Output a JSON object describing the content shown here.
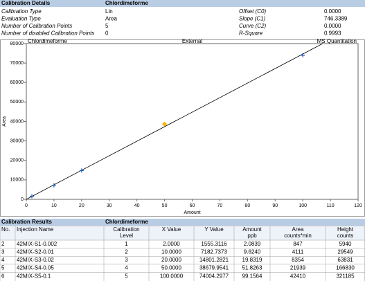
{
  "details": {
    "title": "Calibration Details",
    "compound": "Chlordimeforme",
    "left": [
      {
        "label": "Calibration Type",
        "value": "Lin"
      },
      {
        "label": "Evaluation Type",
        "value": "Area"
      },
      {
        "label": "Number of Calibration Points",
        "value": "5"
      },
      {
        "label": "Number of disabled Calibration Points",
        "value": "0"
      }
    ],
    "right": [
      {
        "label": "Offset (C0)",
        "value": "0.0000"
      },
      {
        "label": "Slope (C1)",
        "value": "746.3389"
      },
      {
        "label": "Curve (C2)",
        "value": "0.0000"
      },
      {
        "label": "R-Square",
        "value": "0.9993"
      }
    ]
  },
  "chart_data": {
    "type": "scatter",
    "title_left": "Chlordimeforme",
    "title": "External",
    "title_right": "MS Quantitation",
    "x_label": "Amount",
    "y_label": "Area",
    "xlim": [
      0,
      120
    ],
    "ylim": [
      0,
      80000
    ],
    "xticks": [
      0,
      10,
      20,
      30,
      40,
      50,
      60,
      70,
      80,
      90,
      100,
      110,
      120
    ],
    "yticks": [
      0,
      10000,
      20000,
      30000,
      40000,
      50000,
      60000,
      70000,
      80000
    ],
    "points": {
      "x": [
        2,
        10,
        20,
        100
      ],
      "y": [
        1555.3116,
        7182.7373,
        14801.2821,
        74004.2977
      ],
      "color": "#1f5fbf"
    },
    "highlight": {
      "x": [
        50
      ],
      "y": [
        38679.9541
      ],
      "color": "#f5b400"
    },
    "line_color": "#000000"
  },
  "results": {
    "title": "Calibration Results",
    "compound": "Chlordimeforme",
    "columns": [
      [
        "No."
      ],
      [
        "Injection Name"
      ],
      [
        "Calibration",
        "Level"
      ],
      [
        "X Value"
      ],
      [
        "Y Value"
      ],
      [
        "Amount",
        "ppb"
      ],
      [
        "Area",
        "counts*min"
      ],
      [
        "Height",
        "counts"
      ]
    ],
    "rows": [
      [
        "2",
        "42MIX-S1-0.002",
        "1",
        "2.0000",
        "1555.3116",
        "2.0839",
        "847",
        "5940"
      ],
      [
        "3",
        "42MIX-S2-0.01",
        "2",
        "10.0000",
        "7182.7373",
        "9.6240",
        "4111",
        "29549"
      ],
      [
        "4",
        "42MIX-S3-0.02",
        "3",
        "20.0000",
        "14801.2821",
        "19.8319",
        "8354",
        "63831"
      ],
      [
        "5",
        "42MIX-S4-0.05",
        "4",
        "50.0000",
        "38679.9541",
        "51.8263",
        "21939",
        "166830"
      ],
      [
        "6",
        "42MIX-S5-0.1",
        "5",
        "100.0000",
        "74004.2977",
        "99.1564",
        "42410",
        "321185"
      ]
    ]
  }
}
